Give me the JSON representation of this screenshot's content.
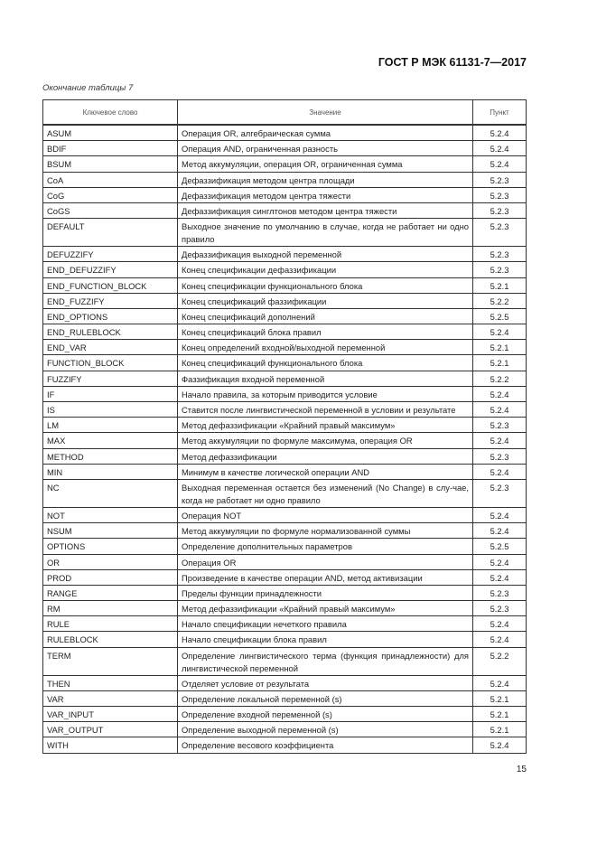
{
  "header": {
    "standard": "ГОСТ Р МЭК 61131-7—2017"
  },
  "caption": "Окончание таблицы 7",
  "table": {
    "columns": [
      "Ключевое слово",
      "Значение",
      "Пункт"
    ],
    "rows": [
      [
        "ASUM",
        "Операция OR, алгебраическая сумма",
        "5.2.4"
      ],
      [
        "BDIF",
        "Операция AND, ограниченная разность",
        "5.2.4"
      ],
      [
        "BSUM",
        "Метод аккумуляции, операция OR, ограниченная сумма",
        "5.2.4"
      ],
      [
        "CoA",
        "Дефаззификация методом центра площади",
        "5.2.3"
      ],
      [
        "CoG",
        "Дефаззификация методом центра тяжести",
        "5.2.3"
      ],
      [
        "CoGS",
        "Дефаззификация синглтонов методом центра тяжести",
        "5.2.3"
      ],
      [
        "DEFAULT",
        "Выходное значение по умолчанию в случае, когда не работает ни одно правило",
        "5.2.3"
      ],
      [
        "DEFUZZIFY",
        "Дефаззификация выходной переменной",
        "5.2.3"
      ],
      [
        "END_DEFUZZIFY",
        "Конец спецификации дефаззификации",
        "5.2.3"
      ],
      [
        "END_FUNCTION_BLOCK",
        "Конец спецификации функционального блока",
        "5.2.1"
      ],
      [
        "END_FUZZIFY",
        "Конец спецификаций фаззификации",
        "5.2.2"
      ],
      [
        "END_OPTIONS",
        "Конец спецификаций дополнений",
        "5.2.5"
      ],
      [
        "END_RULEBLOCK",
        "Конец спецификаций блока правил",
        "5.2.4"
      ],
      [
        "END_VAR",
        "Конец определений входной/выходной переменной",
        "5.2.1"
      ],
      [
        "FUNCTION_BLOCK",
        "Конец спецификаций функционального блока",
        "5.2.1"
      ],
      [
        "FUZZIFY",
        "Фаззификация входной переменной",
        "5.2.2"
      ],
      [
        "IF",
        "Начало правила, за которым приводится условие",
        "5.2.4"
      ],
      [
        "IS",
        "Ставится после лингвистической переменной в условии и результате",
        "5.2.4"
      ],
      [
        "LM",
        "Метод дефаззификации «Крайний правый максимум»",
        "5.2.3"
      ],
      [
        "MAX",
        "Метод аккумуляции по формуле максимума, операция OR",
        "5.2.4"
      ],
      [
        "METHOD",
        "Метод дефаззификации",
        "5.2.3"
      ],
      [
        "MIN",
        "Минимум в качестве логической операции AND",
        "5.2.4"
      ],
      [
        "NC",
        "Выходная переменная остается без изменений (No Change) в слу-чае, когда не работает ни одно правило",
        "5.2.3"
      ],
      [
        "NOT",
        "Операция NOT",
        "5.2.4"
      ],
      [
        "NSUM",
        "Метод аккумуляции по формуле нормализованной суммы",
        "5.2.4"
      ],
      [
        "OPTIONS",
        "Определение дополнительных параметров",
        "5.2.5"
      ],
      [
        "OR",
        "Операция OR",
        "5.2.4"
      ],
      [
        "PROD",
        "Произведение в качестве операции AND, метод активизации",
        "5.2.4"
      ],
      [
        "RANGE",
        "Пределы функции принадлежности",
        "5.2.3"
      ],
      [
        "RM",
        "Метод дефаззификации «Крайний правый максимум»",
        "5.2.3"
      ],
      [
        "RULE",
        "Начало спецификации нечеткого правила",
        "5.2.4"
      ],
      [
        "RULEBLOCK",
        "Начало спецификации блока правил",
        "5.2.4"
      ],
      [
        "TERM",
        "Определение лингвистического терма (функция принадлежности) для лингвистической переменной",
        "5.2.2"
      ],
      [
        "THEN",
        "Отделяет условие от результата",
        "5.2.4"
      ],
      [
        "VAR",
        "Определение локальной переменной (s)",
        "5.2.1"
      ],
      [
        "VAR_INPUT",
        "Определение входной переменной (s)",
        "5.2.1"
      ],
      [
        "VAR_OUTPUT",
        "Определение выходной переменной (s)",
        "5.2.1"
      ],
      [
        "WITH",
        "Определение весового коэффициента",
        "5.2.4"
      ]
    ]
  },
  "footer": {
    "page_number": "15"
  }
}
